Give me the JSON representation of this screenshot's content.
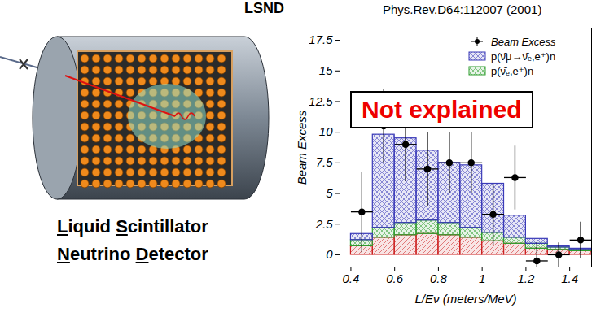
{
  "chart_data": {
    "type": "histogram",
    "title": "LSND",
    "annotations": [
      "Phys.Rev.D64:112007 (2001)",
      "Not explained"
    ],
    "x_label": "L/Eν (meters/MeV)",
    "y_label": "Beam Excess",
    "bins": [
      0.4,
      0.5,
      0.6,
      0.7,
      0.8,
      0.9,
      1.0,
      1.1,
      1.2,
      1.3,
      1.4,
      1.5
    ],
    "stacked": true,
    "series": [
      {
        "color": "#cc2222",
        "values": [
          0.7,
          1.4,
          1.6,
          1.7,
          1.6,
          1.4,
          1.1,
          0.9,
          0.5,
          0.4,
          0.3
        ]
      },
      {
        "name": "p(ν̄ₑ,e⁺)n",
        "color": "#2f9e2f",
        "values": [
          0.5,
          0.8,
          1.0,
          1.1,
          1.0,
          0.8,
          0.7,
          0.5,
          0.4,
          0.2,
          0.1
        ]
      },
      {
        "name": "p(ν̄μ→ν̄ₑ,e⁺)n",
        "color": "#3a3ab8",
        "values": [
          0.5,
          7.6,
          6.9,
          5.7,
          4.9,
          5.1,
          4.0,
          1.8,
          0.4,
          0.1,
          0.1
        ]
      }
    ],
    "points": {
      "name": "Beam Excess",
      "color": "#000000",
      "marker": "circle",
      "x": [
        0.45,
        0.55,
        0.65,
        0.75,
        0.85,
        0.95,
        1.05,
        1.15,
        1.25,
        1.35,
        1.45
      ],
      "y": [
        3.5,
        10.5,
        9.0,
        7.0,
        7.5,
        7.5,
        3.3,
        6.3,
        -0.5,
        0.0,
        1.2
      ],
      "yerr": [
        3.3,
        3.0,
        3.0,
        3.0,
        2.5,
        2.5,
        2.5,
        2.6,
        1.5,
        1.0,
        1.5
      ],
      "xerr": [
        0.05,
        0.05,
        0.05,
        0.05,
        0.05,
        0.05,
        0.05,
        0.05,
        0.05,
        0.05,
        0.05
      ]
    },
    "xlim": [
      0.35,
      1.5
    ],
    "ylim": [
      -1,
      18.5
    ],
    "xticks": [
      0.4,
      0.6,
      0.8,
      1,
      1.2,
      1.4
    ],
    "yticks": [
      0,
      2.5,
      5,
      7.5,
      10,
      12.5,
      15,
      17.5
    ],
    "grid": false,
    "legend": "upper right"
  },
  "detector_label": [
    "Liquid Scintillator",
    "Neutrino Detector"
  ]
}
